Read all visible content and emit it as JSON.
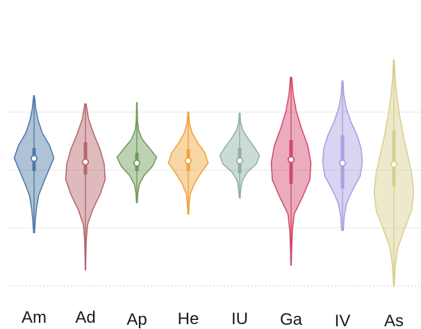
{
  "chart_data": {
    "type": "violin",
    "title": "",
    "xlabel": "",
    "ylabel": "",
    "grid": true,
    "categories": [
      "Am",
      "Ad",
      "Ap",
      "He",
      "IU",
      "Ga",
      "IV",
      "As"
    ],
    "series": [
      {
        "category": "Am",
        "color": "#4e79a7",
        "min": 2.3,
        "q1": 4.95,
        "median": 5.5,
        "q3": 5.95,
        "max": 8.2,
        "widths": [
          0.02,
          0.06,
          0.12,
          0.22,
          0.45,
          0.7,
          0.95,
          0.75,
          0.4,
          0.2,
          0.08,
          0.02
        ]
      },
      {
        "category": "Ad",
        "color": "#b5676b",
        "min": 0.7,
        "q1": 4.8,
        "median": 5.35,
        "q3": 6.2,
        "max": 7.85,
        "widths": [
          0.01,
          0.02,
          0.04,
          0.1,
          0.35,
          0.7,
          0.95,
          0.9,
          0.7,
          0.4,
          0.15,
          0.03
        ]
      },
      {
        "category": "Ap",
        "color": "#6e9a5c",
        "min": 3.6,
        "q1": 4.95,
        "median": 5.3,
        "q3": 5.75,
        "max": 7.9,
        "widths": [
          0.02,
          0.04,
          0.12,
          0.35,
          0.75,
          0.95,
          0.6,
          0.25,
          0.08,
          0.03,
          0.02,
          0.01
        ]
      },
      {
        "category": "He",
        "color": "#f0a33a",
        "min": 3.1,
        "q1": 4.95,
        "median": 5.4,
        "q3": 5.9,
        "max": 7.5,
        "widths": [
          0.02,
          0.04,
          0.1,
          0.3,
          0.6,
          0.95,
          0.8,
          0.45,
          0.18,
          0.05,
          0.02
        ]
      },
      {
        "category": "IU",
        "color": "#8fb0a6",
        "min": 3.8,
        "q1": 4.85,
        "median": 5.4,
        "q3": 5.95,
        "max": 7.45,
        "widths": [
          0.02,
          0.05,
          0.12,
          0.35,
          0.8,
          0.95,
          0.7,
          0.4,
          0.15,
          0.04,
          0.02
        ]
      },
      {
        "category": "Ga",
        "color": "#d24a6c",
        "min": 0.9,
        "q1": 4.4,
        "median": 5.45,
        "q3": 6.3,
        "max": 9.0,
        "widths": [
          0.01,
          0.03,
          0.06,
          0.15,
          0.55,
          0.9,
          0.95,
          0.8,
          0.5,
          0.25,
          0.1,
          0.03
        ]
      },
      {
        "category": "IV",
        "color": "#a8a0e0",
        "min": 2.4,
        "q1": 4.2,
        "median": 5.3,
        "q3": 6.5,
        "max": 8.85,
        "widths": [
          0.04,
          0.08,
          0.2,
          0.5,
          0.85,
          0.95,
          0.9,
          0.7,
          0.4,
          0.18,
          0.06,
          0.02
        ]
      },
      {
        "category": "As",
        "color": "#d8cf8f",
        "min": 0.0,
        "q1": 4.3,
        "median": 5.25,
        "q3": 6.7,
        "max": 9.75,
        "widths": [
          0.02,
          0.06,
          0.18,
          0.5,
          0.85,
          0.95,
          0.85,
          0.65,
          0.45,
          0.28,
          0.15,
          0.06,
          0.02
        ]
      }
    ],
    "ylim": [
      0,
      10
    ],
    "gridlines": [
      2.5,
      5.0,
      7.5
    ],
    "baseline": 0.0
  }
}
